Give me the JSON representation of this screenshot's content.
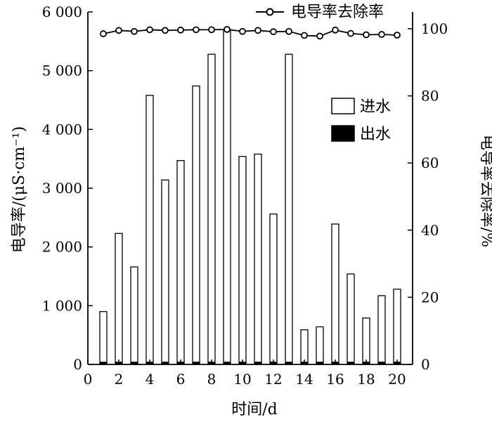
{
  "chart_data": {
    "type": "bar",
    "xlabel": "时间/d",
    "ylabel_left": "电导率/(μS·cm⁻¹)",
    "ylabel_right": "电导率去除率/%",
    "x": [
      1,
      2,
      3,
      4,
      5,
      6,
      7,
      8,
      9,
      10,
      11,
      12,
      13,
      14,
      15,
      16,
      17,
      18,
      19,
      20
    ],
    "xlim": [
      0,
      21
    ],
    "x_ticks": [
      0,
      2,
      4,
      6,
      8,
      10,
      12,
      14,
      16,
      18,
      20
    ],
    "x_tick_labels": [
      "0",
      "2",
      "4",
      "6",
      "8",
      "10",
      "12",
      "14",
      "16",
      "18",
      "20"
    ],
    "ylim_left": [
      0,
      6000
    ],
    "y_left_ticks": [
      0,
      1000,
      2000,
      3000,
      4000,
      5000,
      6000
    ],
    "y_left_tick_labels": [
      "0",
      "1 000",
      "2 000",
      "3 000",
      "4 000",
      "5 000",
      "6 000"
    ],
    "ylim_right": [
      0,
      105
    ],
    "y_right_ticks": [
      0,
      20,
      40,
      60,
      80,
      100
    ],
    "y_right_tick_labels": [
      "0",
      "20",
      "40",
      "60",
      "80",
      "100"
    ],
    "series": [
      {
        "name": "进水",
        "type": "bar",
        "axis": "left",
        "fill": "#ffffff",
        "values": [
          900,
          2230,
          1660,
          4580,
          3140,
          3470,
          4740,
          5280,
          5700,
          3540,
          3580,
          2560,
          5280,
          590,
          640,
          2390,
          1540,
          790,
          1170,
          1280
        ]
      },
      {
        "name": "出水",
        "type": "bar",
        "axis": "left",
        "fill": "#000000",
        "values": [
          40,
          40,
          40,
          40,
          40,
          40,
          40,
          40,
          40,
          40,
          40,
          40,
          40,
          40,
          40,
          40,
          40,
          40,
          40,
          40
        ]
      },
      {
        "name": "电导率去除率",
        "type": "line",
        "axis": "right",
        "marker": "circle",
        "values": [
          98.5,
          99.5,
          99.2,
          99.7,
          99.5,
          99.6,
          99.7,
          99.7,
          99.8,
          99.2,
          99.5,
          99.1,
          99.2,
          98.0,
          97.8,
          99.6,
          98.6,
          98.2,
          98.3,
          98.1
        ]
      }
    ]
  }
}
